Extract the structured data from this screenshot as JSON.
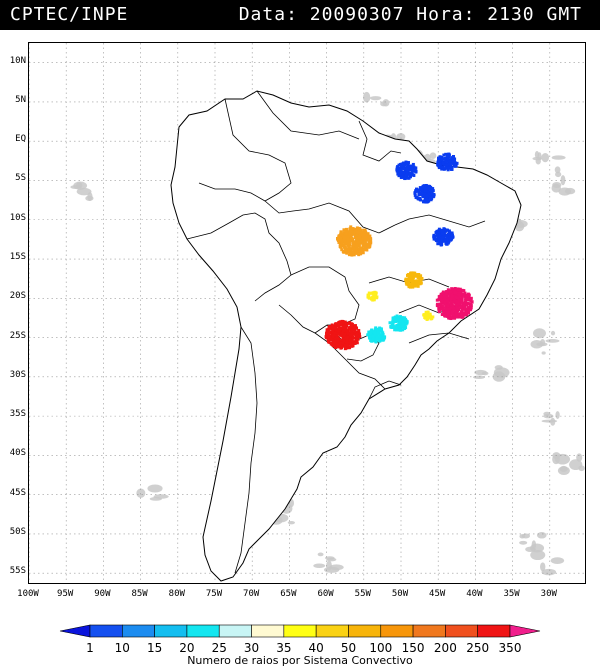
{
  "header": {
    "source": "CPTEC/INPE",
    "datetime": "Data: 20090307 Hora: 2130 GMT"
  },
  "map": {
    "lon_range": [
      -100,
      -25
    ],
    "lat_range": [
      12.5,
      -56.5
    ],
    "latitude_labels": [
      {
        "lat": 10,
        "label": "10N"
      },
      {
        "lat": 5,
        "label": "5N"
      },
      {
        "lat": 0,
        "label": "EQ"
      },
      {
        "lat": -5,
        "label": "5S"
      },
      {
        "lat": -10,
        "label": "10S"
      },
      {
        "lat": -15,
        "label": "15S"
      },
      {
        "lat": -20,
        "label": "20S"
      },
      {
        "lat": -25,
        "label": "25S"
      },
      {
        "lat": -30,
        "label": "30S"
      },
      {
        "lat": -35,
        "label": "35S"
      },
      {
        "lat": -40,
        "label": "40S"
      },
      {
        "lat": -45,
        "label": "45S"
      },
      {
        "lat": -50,
        "label": "50S"
      },
      {
        "lat": -55,
        "label": "55S"
      }
    ],
    "longitude_labels": [
      {
        "lon": -100,
        "label": "100W"
      },
      {
        "lon": -95,
        "label": "95W"
      },
      {
        "lon": -90,
        "label": "90W"
      },
      {
        "lon": -85,
        "label": "85W"
      },
      {
        "lon": -80,
        "label": "80W"
      },
      {
        "lon": -75,
        "label": "75W"
      },
      {
        "lon": -70,
        "label": "70W"
      },
      {
        "lon": -65,
        "label": "65W"
      },
      {
        "lon": -60,
        "label": "60W"
      },
      {
        "lon": -55,
        "label": "55W"
      },
      {
        "lon": -50,
        "label": "50W"
      },
      {
        "lon": -45,
        "label": "45W"
      },
      {
        "lon": -40,
        "label": "40W"
      },
      {
        "lon": -35,
        "label": "35W"
      },
      {
        "lon": -30,
        "label": "30W"
      }
    ],
    "gridlines": true,
    "cloud_color": "#c8c8c8",
    "lightning_systems": [
      {
        "lon": -47.0,
        "lat": -6.5,
        "class": "10",
        "color": "#0a3cf0"
      },
      {
        "lon": -49.5,
        "lat": -3.5,
        "class": "10",
        "color": "#0a3cf0"
      },
      {
        "lon": -44.0,
        "lat": -2.5,
        "class": "10",
        "color": "#0a3cf0"
      },
      {
        "lon": -44.5,
        "lat": -12.0,
        "class": "10",
        "color": "#0a3cf0"
      },
      {
        "lon": -56.5,
        "lat": -12.5,
        "class": "150",
        "color": "#f7a01e"
      },
      {
        "lon": -48.5,
        "lat": -17.5,
        "class": "100",
        "color": "#f7b80c"
      },
      {
        "lon": -43.0,
        "lat": -20.5,
        "class": "350",
        "color": "#f0106e"
      },
      {
        "lon": -58.0,
        "lat": -24.5,
        "class": "250",
        "color": "#f01414"
      },
      {
        "lon": -53.5,
        "lat": -24.5,
        "class": "25",
        "color": "#14e6f0"
      },
      {
        "lon": -50.5,
        "lat": -23.0,
        "class": "25",
        "color": "#14e6f0"
      },
      {
        "lon": -54.0,
        "lat": -19.5,
        "class": "40",
        "color": "#ffee1e"
      },
      {
        "lon": -46.5,
        "lat": -22.0,
        "class": "40",
        "color": "#ffee1e"
      }
    ]
  },
  "colorbar": {
    "labels": [
      "1",
      "10",
      "15",
      "20",
      "25",
      "30",
      "35",
      "40",
      "50",
      "100",
      "150",
      "200",
      "250",
      "350"
    ],
    "colors": [
      "#0a14dc",
      "#1450f0",
      "#1c8cf0",
      "#14bef0",
      "#14e6f0",
      "#c8f5f5",
      "#fffad2",
      "#ffff14",
      "#fad214",
      "#f7b40a",
      "#f7960a",
      "#f0781e",
      "#f0501e",
      "#f01414",
      "#f01e8c"
    ],
    "caption": "Numero de raios por Sistema Convectivo"
  }
}
